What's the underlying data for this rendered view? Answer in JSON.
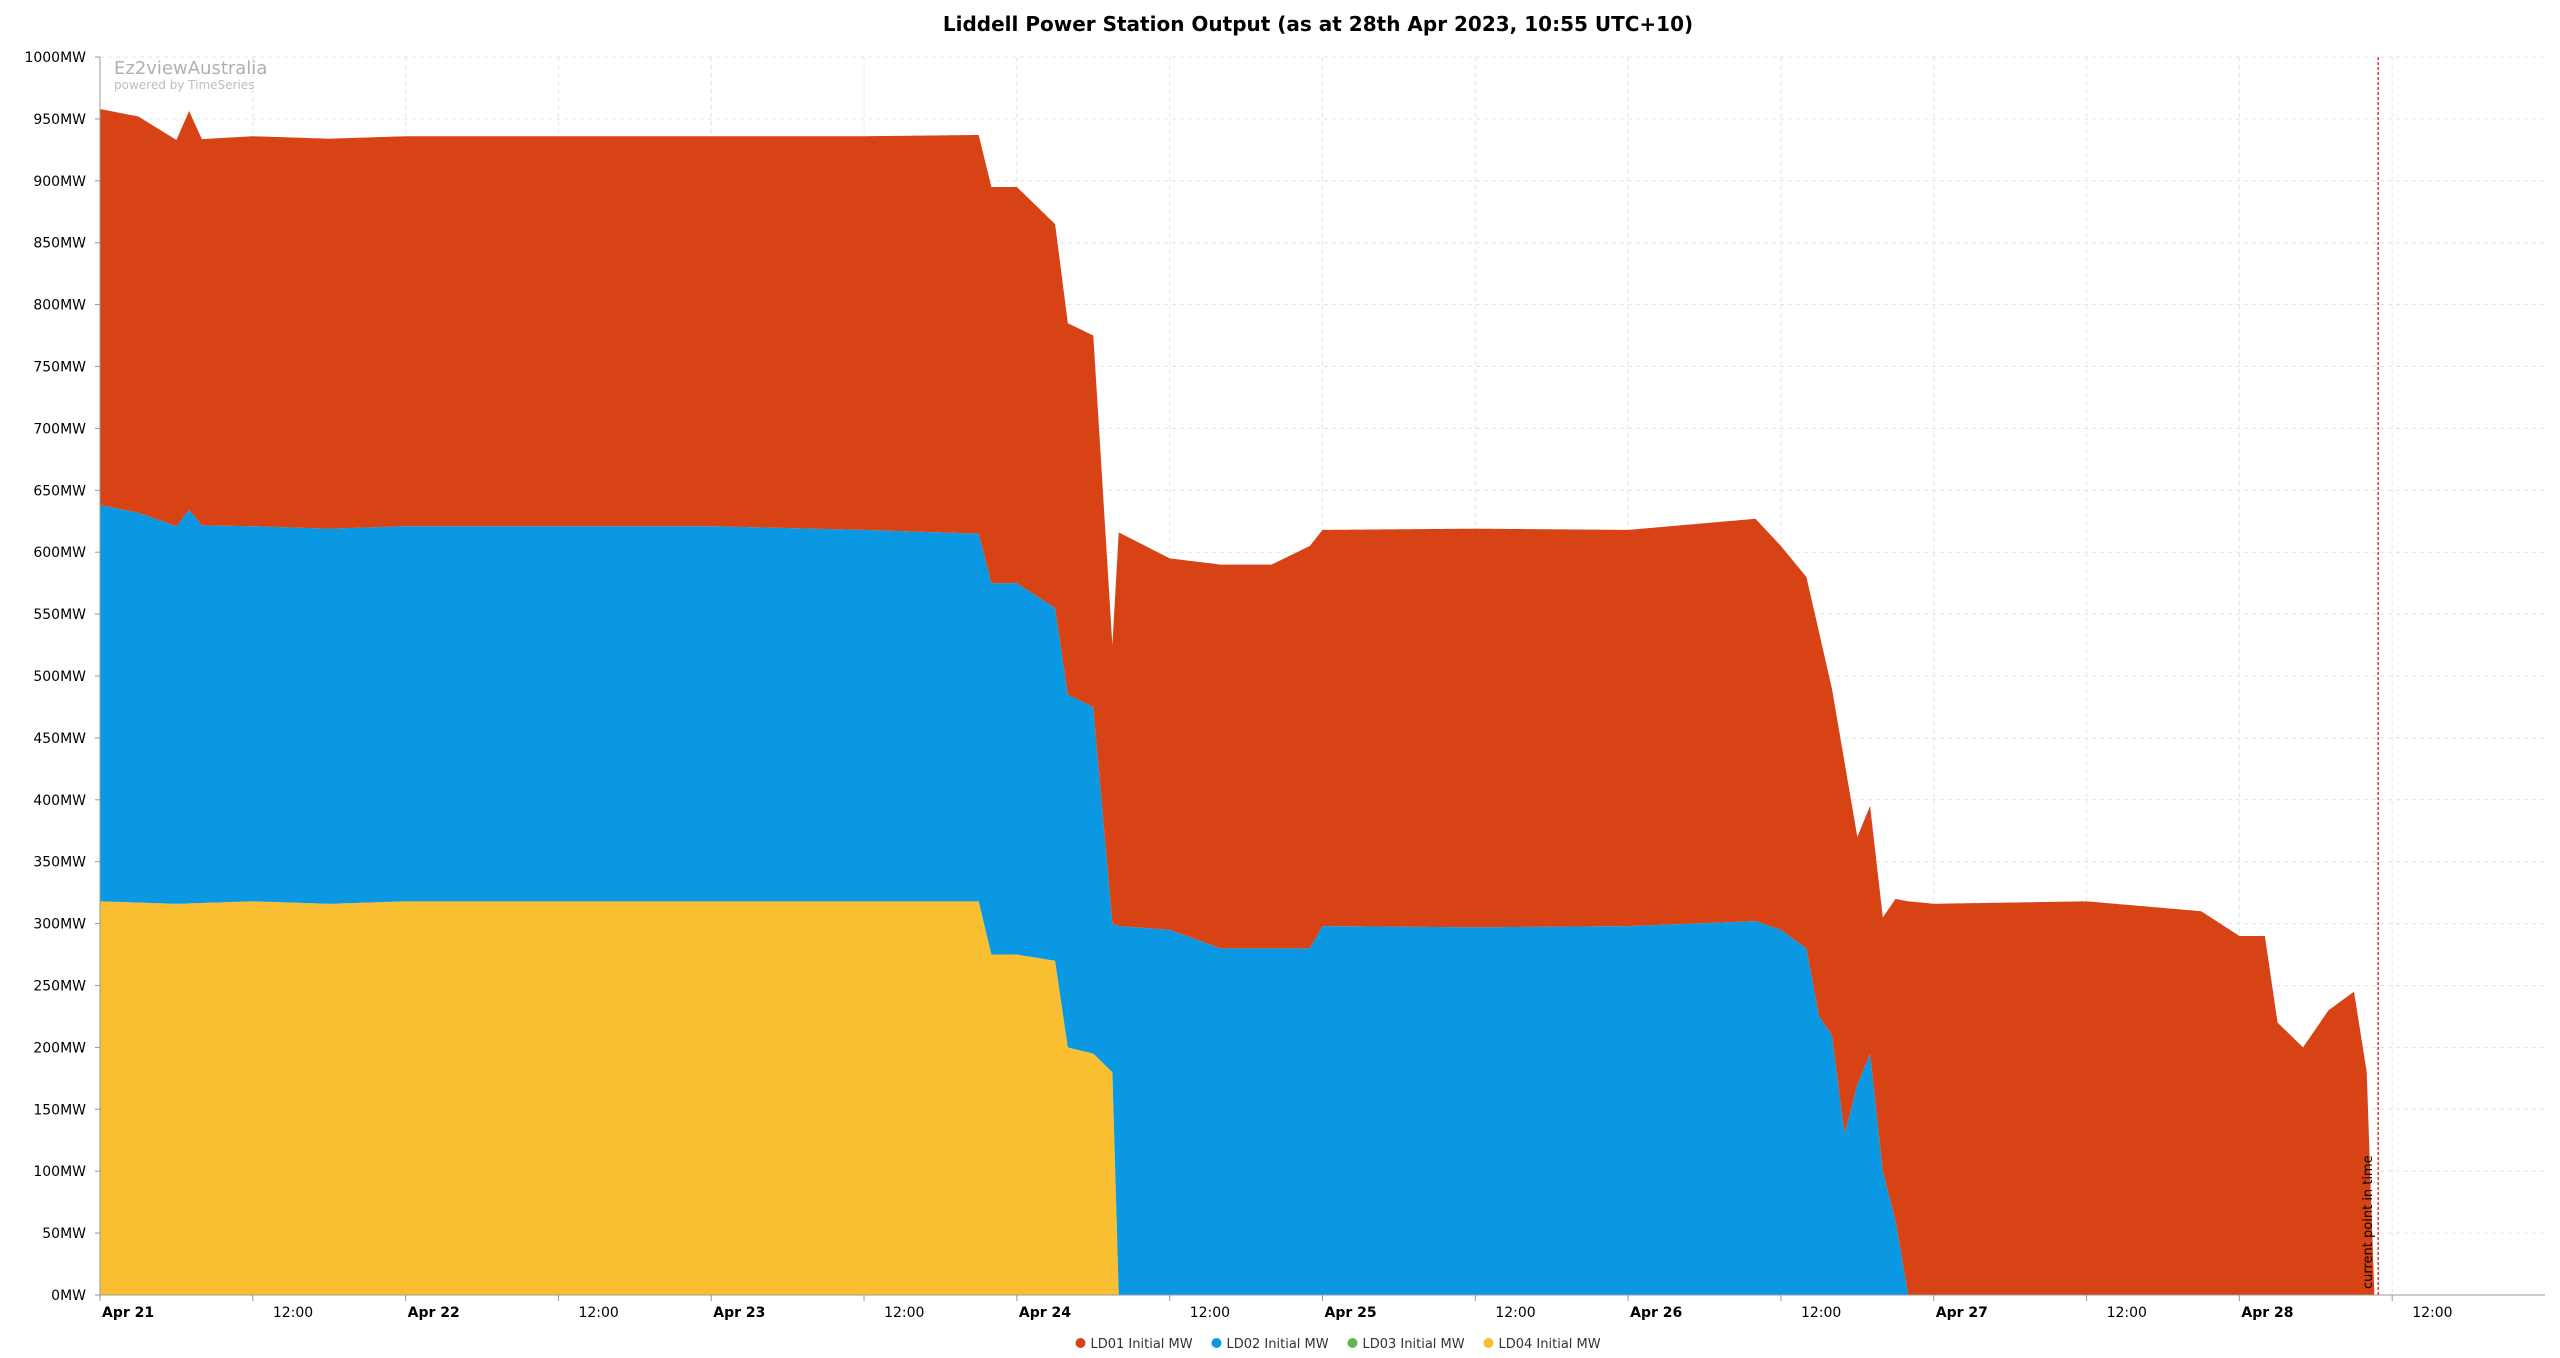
{
  "watermark": {
    "brand": "Ez2viewAustralia",
    "sub": "powered by TimeSeries"
  },
  "chart_data": {
    "type": "area",
    "stacked": true,
    "title": "Liddell Power Station Output (as at 28th Apr 2023, 10:55 UTC+10)",
    "ylim": [
      0,
      1000
    ],
    "y_unit": "MW",
    "yticks": [
      0,
      50,
      100,
      150,
      200,
      250,
      300,
      350,
      400,
      450,
      500,
      550,
      600,
      650,
      700,
      750,
      800,
      850,
      900,
      950,
      1000
    ],
    "ytick_labels": [
      "0MW",
      "50MW",
      "100MW",
      "150MW",
      "200MW",
      "250MW",
      "300MW",
      "350MW",
      "400MW",
      "450MW",
      "500MW",
      "550MW",
      "600MW",
      "650MW",
      "700MW",
      "750MW",
      "800MW",
      "850MW",
      "900MW",
      "950MW",
      "1000MW"
    ],
    "x_unit": "hours from Apr 21 00:00",
    "xlim": [
      0,
      192
    ],
    "xticks": [
      {
        "t": 0,
        "label": "Apr 21",
        "major": true
      },
      {
        "t": 12,
        "label": "12:00",
        "major": false
      },
      {
        "t": 24,
        "label": "Apr 22",
        "major": true
      },
      {
        "t": 36,
        "label": "12:00",
        "major": false
      },
      {
        "t": 48,
        "label": "Apr 23",
        "major": true
      },
      {
        "t": 60,
        "label": "12:00",
        "major": false
      },
      {
        "t": 72,
        "label": "Apr 24",
        "major": true
      },
      {
        "t": 84,
        "label": "12:00",
        "major": false
      },
      {
        "t": 96,
        "label": "Apr 25",
        "major": true
      },
      {
        "t": 108,
        "label": "12:00",
        "major": false
      },
      {
        "t": 120,
        "label": "Apr 26",
        "major": true
      },
      {
        "t": 132,
        "label": "12:00",
        "major": false
      },
      {
        "t": 144,
        "label": "Apr 27",
        "major": true
      },
      {
        "t": 156,
        "label": "12:00",
        "major": false
      },
      {
        "t": 168,
        "label": "Apr 28",
        "major": true
      },
      {
        "t": 180,
        "label": "12:00",
        "major": false
      }
    ],
    "grid": true,
    "legend_position": "bottom-center",
    "current_time": {
      "t": 178.9,
      "label": "current point in time",
      "color": "#e3342f"
    },
    "series": [
      {
        "name": "LD04 Initial MW",
        "color": "#f9bf31",
        "points": [
          [
            0,
            318
          ],
          [
            6,
            316
          ],
          [
            12,
            318
          ],
          [
            18,
            316
          ],
          [
            24,
            318
          ],
          [
            36,
            318
          ],
          [
            48,
            318
          ],
          [
            60,
            318
          ],
          [
            69,
            318
          ],
          [
            70,
            275
          ],
          [
            72,
            275
          ],
          [
            75,
            270
          ],
          [
            76,
            200
          ],
          [
            78,
            195
          ],
          [
            79.5,
            180
          ],
          [
            80,
            0
          ],
          [
            192,
            0
          ]
        ]
      },
      {
        "name": "LD03 Initial MW",
        "color": "#5db84c",
        "points": [
          [
            0,
            0
          ],
          [
            192,
            0
          ]
        ]
      },
      {
        "name": "LD02 Initial MW",
        "color": "#0a98e3",
        "points": [
          [
            0,
            320
          ],
          [
            3,
            315
          ],
          [
            6,
            305
          ],
          [
            7,
            318
          ],
          [
            8,
            305
          ],
          [
            12,
            303
          ],
          [
            24,
            303
          ],
          [
            36,
            303
          ],
          [
            48,
            303
          ],
          [
            60,
            300
          ],
          [
            69,
            297
          ],
          [
            70,
            300
          ],
          [
            72,
            300
          ],
          [
            75,
            285
          ],
          [
            76,
            285
          ],
          [
            78,
            280
          ],
          [
            79.5,
            120
          ],
          [
            80,
            298
          ],
          [
            84,
            295
          ],
          [
            88,
            280
          ],
          [
            92,
            280
          ],
          [
            95,
            280
          ],
          [
            96,
            298
          ],
          [
            108,
            297
          ],
          [
            120,
            298
          ],
          [
            130,
            302
          ],
          [
            132,
            295
          ],
          [
            134,
            280
          ],
          [
            135,
            225
          ],
          [
            136,
            210
          ],
          [
            137,
            130
          ],
          [
            138,
            170
          ],
          [
            139,
            195
          ],
          [
            140,
            100
          ],
          [
            141,
            60
          ],
          [
            142,
            0
          ],
          [
            192,
            0
          ]
        ]
      },
      {
        "name": "LD01 Initial MW",
        "color": "#d84315",
        "points": [
          [
            0,
            320
          ],
          [
            3,
            320
          ],
          [
            6,
            312
          ],
          [
            7,
            322
          ],
          [
            8,
            312
          ],
          [
            12,
            315
          ],
          [
            24,
            315
          ],
          [
            36,
            315
          ],
          [
            48,
            315
          ],
          [
            60,
            318
          ],
          [
            69,
            322
          ],
          [
            70,
            320
          ],
          [
            72,
            320
          ],
          [
            75,
            310
          ],
          [
            76,
            300
          ],
          [
            78,
            300
          ],
          [
            79.5,
            225
          ],
          [
            80,
            318
          ],
          [
            84,
            300
          ],
          [
            88,
            310
          ],
          [
            92,
            310
          ],
          [
            95,
            325
          ],
          [
            96,
            320
          ],
          [
            108,
            322
          ],
          [
            120,
            320
          ],
          [
            130,
            325
          ],
          [
            132,
            310
          ],
          [
            134,
            300
          ],
          [
            135,
            310
          ],
          [
            136,
            280
          ],
          [
            137,
            300
          ],
          [
            138,
            200
          ],
          [
            139,
            200
          ],
          [
            140,
            205
          ],
          [
            141,
            260
          ],
          [
            142,
            318
          ],
          [
            144,
            316
          ],
          [
            156,
            318
          ],
          [
            165,
            310
          ],
          [
            168,
            290
          ],
          [
            170,
            290
          ],
          [
            171,
            220
          ],
          [
            173,
            200
          ],
          [
            175,
            230
          ],
          [
            177,
            245
          ],
          [
            178,
            180
          ],
          [
            178.6,
            0
          ],
          [
            192,
            0
          ]
        ]
      }
    ]
  }
}
